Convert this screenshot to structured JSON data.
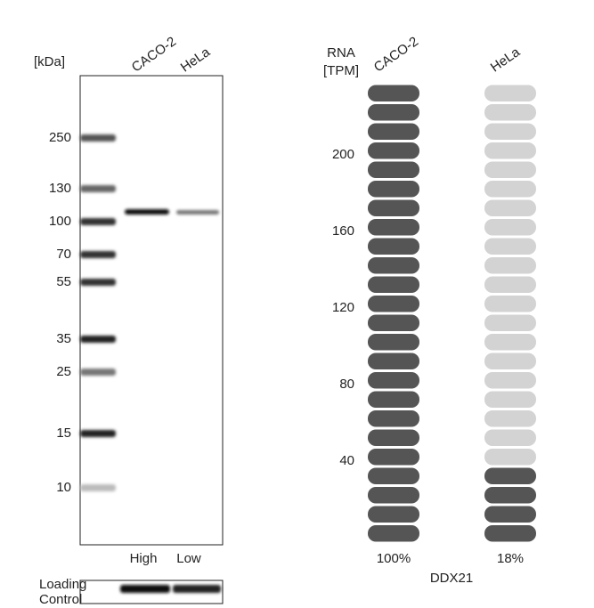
{
  "western_blot": {
    "unit_label": "[kDa]",
    "lanes": [
      "CACO-2",
      "HeLa"
    ],
    "markers": [
      250,
      130,
      100,
      70,
      55,
      35,
      25,
      15,
      10
    ],
    "lane_levels": [
      "High",
      "Low"
    ],
    "loading_control": [
      "Loading",
      "Control"
    ]
  },
  "chart_data": {
    "type": "pill",
    "y_label": [
      "RNA",
      "[TPM]"
    ],
    "gene": "DDX21",
    "categories": [
      "CACO-2",
      "HeLa"
    ],
    "values": [
      100,
      18
    ],
    "value_labels": [
      "100%",
      "18%"
    ],
    "colors": [
      "#555555",
      "#d3d3d3"
    ],
    "ylim": [
      0,
      240
    ],
    "yticks": [
      40,
      80,
      120,
      160,
      200
    ]
  }
}
